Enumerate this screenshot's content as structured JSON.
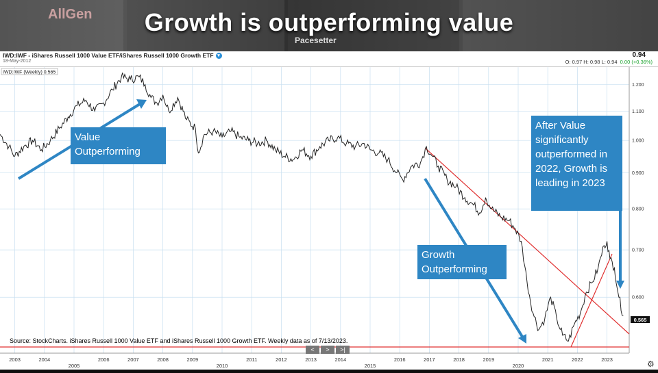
{
  "banner": {
    "title": "Growth is outperforming value",
    "logo_text": "AllGen",
    "sub_text": "Pacesetter"
  },
  "chart_header": {
    "symbol": "IWD:IWF - iShares Russell 1000 Value ETF/iShares Russell 1000 Growth ETF",
    "date": "18-May-2012",
    "last": "0.94",
    "ohlc": "O: 0.97   H: 0.98   L: 0.94",
    "change": "0.00 (+0.36%)"
  },
  "legend_label": "IWD:IWF (Weekly) 0.565",
  "current_value_label": "0.565",
  "annotations": {
    "value_box": "Value Outperforming",
    "growth_box": "Growth Outperforming",
    "right_box": "After Value significantly outperformed in 2022, Growth is leading in 2023"
  },
  "source": "Source: StockCharts. iShares Russell 1000 Value ETF and iShares Russell 1000 Growth ETF. Weekly data as of 7/13/2023.",
  "nav_buttons": [
    "<",
    ">",
    ">|"
  ],
  "colors": {
    "annotation": "#2e86c4",
    "trendline": "#e03030",
    "price": "#222222",
    "grid": "#c8dff0"
  },
  "chart_data": {
    "type": "line",
    "title": "IWD:IWF (Weekly)",
    "x_ticks_top": [
      "2003",
      "2004",
      "2006",
      "2007",
      "2008",
      "2009",
      "2011",
      "2012",
      "2013",
      "2014",
      "2016",
      "2017",
      "2018",
      "2019",
      "2021",
      "2022",
      "2023"
    ],
    "x_ticks_bottom": [
      "2005",
      "2010",
      "2015",
      "2020"
    ],
    "y_ticks": [
      "1.200",
      "1.100",
      "1.000",
      "0.900",
      "0.800",
      "0.700",
      "0.600"
    ],
    "ylim": [
      0.5,
      1.27
    ],
    "xlim": [
      2002.5,
      2023.75
    ],
    "y_scale": "log",
    "grid": true,
    "series": [
      {
        "points": [
          [
            2002.5,
            1.02
          ],
          [
            2002.8,
            0.98
          ],
          [
            2003.0,
            0.95
          ],
          [
            2003.3,
            0.98
          ],
          [
            2003.6,
            1.0
          ],
          [
            2003.9,
            0.97
          ],
          [
            2004.2,
            1.0
          ],
          [
            2004.5,
            1.04
          ],
          [
            2004.8,
            1.08
          ],
          [
            2005.1,
            1.12
          ],
          [
            2005.4,
            1.14
          ],
          [
            2005.7,
            1.1
          ],
          [
            2006.0,
            1.13
          ],
          [
            2006.3,
            1.18
          ],
          [
            2006.6,
            1.23
          ],
          [
            2006.9,
            1.22
          ],
          [
            2007.2,
            1.23
          ],
          [
            2007.4,
            1.2
          ],
          [
            2007.6,
            1.15
          ],
          [
            2007.8,
            1.13
          ],
          [
            2008.0,
            1.16
          ],
          [
            2008.2,
            1.1
          ],
          [
            2008.5,
            1.15
          ],
          [
            2008.8,
            1.07
          ],
          [
            2009.1,
            1.04
          ],
          [
            2009.2,
            0.96
          ],
          [
            2009.4,
            1.02
          ],
          [
            2009.7,
            1.03
          ],
          [
            2010.0,
            1.01
          ],
          [
            2010.3,
            1.03
          ],
          [
            2010.6,
            1.01
          ],
          [
            2010.9,
            1.0
          ],
          [
            2011.2,
            0.99
          ],
          [
            2011.5,
            1.0
          ],
          [
            2011.8,
            0.97
          ],
          [
            2012.1,
            0.95
          ],
          [
            2012.4,
            0.94
          ],
          [
            2012.7,
            0.97
          ],
          [
            2013.0,
            0.95
          ],
          [
            2013.3,
            0.98
          ],
          [
            2013.6,
            1.0
          ],
          [
            2013.9,
            1.01
          ],
          [
            2014.2,
            0.99
          ],
          [
            2014.5,
            0.98
          ],
          [
            2014.8,
            0.99
          ],
          [
            2015.0,
            0.97
          ],
          [
            2015.3,
            0.96
          ],
          [
            2015.6,
            0.94
          ],
          [
            2015.9,
            0.9
          ],
          [
            2016.1,
            0.88
          ],
          [
            2016.4,
            0.92
          ],
          [
            2016.7,
            0.93
          ],
          [
            2016.9,
            0.98
          ],
          [
            2017.1,
            0.95
          ],
          [
            2017.3,
            0.92
          ],
          [
            2017.6,
            0.88
          ],
          [
            2017.9,
            0.86
          ],
          [
            2018.2,
            0.83
          ],
          [
            2018.5,
            0.81
          ],
          [
            2018.7,
            0.79
          ],
          [
            2018.9,
            0.83
          ],
          [
            2019.1,
            0.8
          ],
          [
            2019.4,
            0.78
          ],
          [
            2019.7,
            0.77
          ],
          [
            2019.9,
            0.75
          ],
          [
            2020.1,
            0.72
          ],
          [
            2020.3,
            0.63
          ],
          [
            2020.5,
            0.57
          ],
          [
            2020.7,
            0.54
          ],
          [
            2020.9,
            0.56
          ],
          [
            2021.1,
            0.6
          ],
          [
            2021.3,
            0.56
          ],
          [
            2021.5,
            0.53
          ],
          [
            2021.7,
            0.52
          ],
          [
            2021.9,
            0.55
          ],
          [
            2022.1,
            0.57
          ],
          [
            2022.3,
            0.61
          ],
          [
            2022.5,
            0.63
          ],
          [
            2022.7,
            0.66
          ],
          [
            2022.9,
            0.71
          ],
          [
            2023.0,
            0.72
          ],
          [
            2023.1,
            0.68
          ],
          [
            2023.25,
            0.66
          ],
          [
            2023.4,
            0.6
          ],
          [
            2023.55,
            0.565
          ]
        ]
      }
    ]
  }
}
